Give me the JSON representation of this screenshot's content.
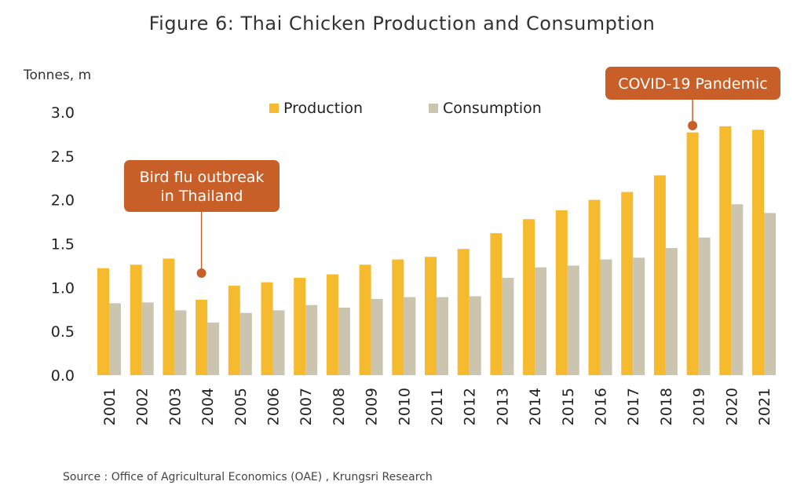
{
  "chart_data": {
    "type": "bar",
    "title": "Figure 6: Thai Chicken Production and Consumption",
    "ylabel": "Tonnes, m",
    "xlabel": "",
    "ylim": [
      0,
      3.0
    ],
    "yticks": [
      "0.0",
      "0.5",
      "1.0",
      "1.5",
      "2.0",
      "2.5",
      "3.0"
    ],
    "categories": [
      "2001",
      "2002",
      "2003",
      "2004",
      "2005",
      "2006",
      "2007",
      "2008",
      "2009",
      "2010",
      "2011",
      "2012",
      "2013",
      "2014",
      "2015",
      "2016",
      "2017",
      "2018",
      "2019",
      "2020",
      "2021"
    ],
    "series": [
      {
        "name": "Production",
        "color": "#F5BA2E",
        "values": [
          1.22,
          1.26,
          1.33,
          0.86,
          1.02,
          1.06,
          1.11,
          1.15,
          1.26,
          1.32,
          1.35,
          1.44,
          1.62,
          1.78,
          1.88,
          2.0,
          2.09,
          2.28,
          2.77,
          2.84,
          2.8
        ]
      },
      {
        "name": "Consumption",
        "color": "#CBC4AE",
        "values": [
          0.82,
          0.83,
          0.74,
          0.6,
          0.71,
          0.74,
          0.8,
          0.77,
          0.87,
          0.89,
          0.89,
          0.9,
          1.11,
          1.23,
          1.25,
          1.32,
          1.34,
          1.45,
          1.57,
          1.95,
          1.85
        ]
      }
    ],
    "legend": "top-center",
    "grid": false,
    "annotations": [
      {
        "text_lines": [
          "Bird flu outbreak",
          "in Thailand"
        ],
        "category": "2004",
        "color": "#C85F28"
      },
      {
        "text_lines": [
          "COVID-19 Pandemic"
        ],
        "category": "2019",
        "color": "#C85F28"
      }
    ],
    "source": "Source : Office of Agricultural Economics (OAE) , Krungsri Research"
  }
}
